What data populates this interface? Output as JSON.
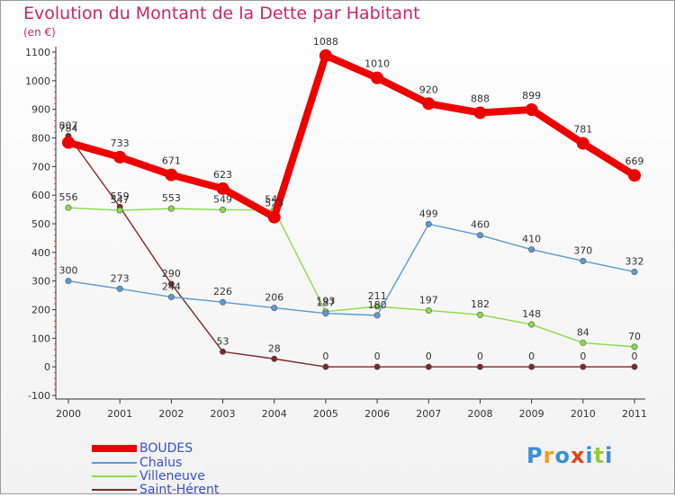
{
  "chart_data": {
    "type": "line",
    "title": "Evolution du Montant de la Dette par Habitant",
    "subtitle": "(en €)",
    "x": [
      "2000",
      "2001",
      "2002",
      "2003",
      "2004",
      "2005",
      "2006",
      "2007",
      "2008",
      "2009",
      "2010",
      "2011"
    ],
    "yticks": [
      "-100",
      "0",
      "100",
      "200",
      "300",
      "400",
      "500",
      "600",
      "700",
      "800",
      "900",
      "1000",
      "1100"
    ],
    "ylim": [
      -100,
      1100
    ],
    "grid": false,
    "legend_position": "bottom-left",
    "series": [
      {
        "name": "BOUDES",
        "color": "#ee0000",
        "values": [
          784,
          733,
          671,
          623,
          523,
          1088,
          1010,
          920,
          888,
          899,
          781,
          669
        ]
      },
      {
        "name": "Chalus",
        "color": "#5b9bd5",
        "values": [
          300,
          273,
          244,
          226,
          206,
          187,
          180,
          499,
          460,
          410,
          370,
          332
        ]
      },
      {
        "name": "Villeneuve",
        "color": "#8fd94a",
        "values": [
          556,
          547,
          553,
          549,
          548,
          193,
          211,
          197,
          182,
          148,
          84,
          70
        ]
      },
      {
        "name": "Saint-Hérent",
        "color": "#7a2a2a",
        "values": [
          807,
          559,
          290,
          53,
          28,
          0,
          0,
          0,
          0,
          0,
          0,
          0
        ]
      }
    ]
  },
  "brand": {
    "logo_text": "Proxiti",
    "colors": [
      "#3a8fd8",
      "#f0a020",
      "#3a8fd8",
      "#e8401c",
      "#3a8fd8",
      "#9bc83a",
      "#3a8fd8"
    ]
  }
}
